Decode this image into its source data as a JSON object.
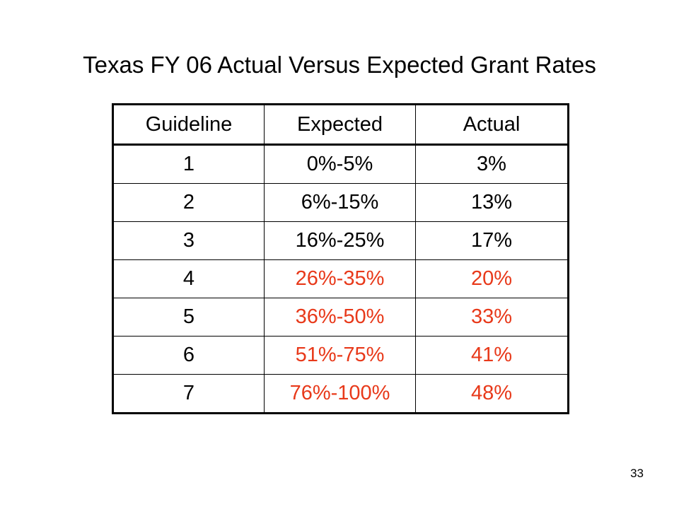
{
  "slide": {
    "title": "Texas FY 06 Actual Versus Expected Grant Rates",
    "page_number": "33",
    "highlight_color": "#e8391a"
  },
  "table": {
    "headers": [
      "Guideline",
      "Expected",
      "Actual"
    ],
    "rows": [
      {
        "guideline": "1",
        "expected": "0%-5%",
        "actual": "3%",
        "highlight": false
      },
      {
        "guideline": "2",
        "expected": "6%-15%",
        "actual": "13%",
        "highlight": false
      },
      {
        "guideline": "3",
        "expected": "16%-25%",
        "actual": "17%",
        "highlight": false
      },
      {
        "guideline": "4",
        "expected": "26%-35%",
        "actual": "20%",
        "highlight": true
      },
      {
        "guideline": "5",
        "expected": "36%-50%",
        "actual": "33%",
        "highlight": true
      },
      {
        "guideline": "6",
        "expected": "51%-75%",
        "actual": "41%",
        "highlight": true
      },
      {
        "guideline": "7",
        "expected": "76%-100%",
        "actual": "48%",
        "highlight": true
      }
    ]
  }
}
